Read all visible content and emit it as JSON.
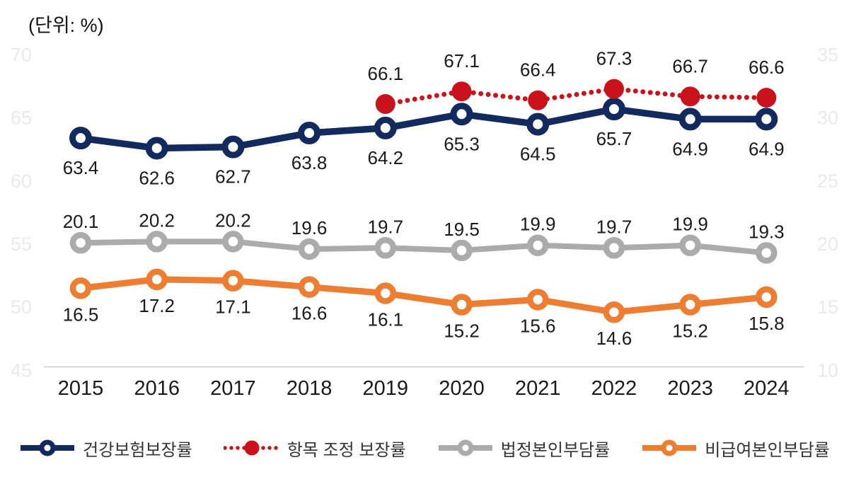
{
  "unit_label": "(단위: %)",
  "chart_data": {
    "type": "line",
    "title": "",
    "xlabel": "",
    "ylabel": "(단위: %)",
    "categories": [
      "2015",
      "2016",
      "2017",
      "2018",
      "2019",
      "2020",
      "2021",
      "2022",
      "2023",
      "2024"
    ],
    "series": [
      {
        "id": "health-insurance-coverage",
        "name": "건강보험보장률",
        "color": "#132a5f",
        "axis": "left",
        "line": "solid",
        "marker": "ring",
        "label_side": "below",
        "values": [
          63.4,
          62.6,
          62.7,
          63.8,
          64.2,
          65.3,
          64.5,
          65.7,
          64.9,
          64.9
        ]
      },
      {
        "id": "adjusted-coverage",
        "name": "항목 조정 보장률",
        "color": "#c9121c",
        "axis": "left",
        "line": "dotted",
        "marker": "filled",
        "label_side": "above",
        "values": [
          null,
          null,
          null,
          null,
          66.1,
          67.1,
          66.4,
          67.3,
          66.7,
          66.6
        ]
      },
      {
        "id": "statutory-copayment",
        "name": "법정본인부담률",
        "color": "#ababab",
        "axis": "right",
        "line": "solid",
        "marker": "ring",
        "label_side": "above",
        "values": [
          20.1,
          20.2,
          20.2,
          19.6,
          19.7,
          19.5,
          19.9,
          19.7,
          19.9,
          19.3
        ]
      },
      {
        "id": "non-covered-copayment",
        "name": "비급여본인부담률",
        "color": "#ed7d31",
        "axis": "right",
        "line": "solid",
        "marker": "ring",
        "label_side": "below",
        "values": [
          16.5,
          17.2,
          17.1,
          16.6,
          16.1,
          15.2,
          15.6,
          14.6,
          15.2,
          15.8
        ]
      }
    ],
    "left_axis": {
      "min": 45,
      "max": 70,
      "ticks": [
        70,
        65,
        60,
        55,
        50,
        45
      ]
    },
    "right_axis": {
      "min": 10,
      "max": 35,
      "ticks": [
        35,
        30,
        25,
        20,
        15,
        10
      ]
    },
    "grid": false,
    "legend_position": "bottom",
    "colors": {
      "tick_label": "#e9e9e9",
      "axis_line": "#d9d9d9",
      "value_label": "#1a1a1a",
      "year_label": "#1a1a1a",
      "legend_text": "#333333"
    }
  }
}
